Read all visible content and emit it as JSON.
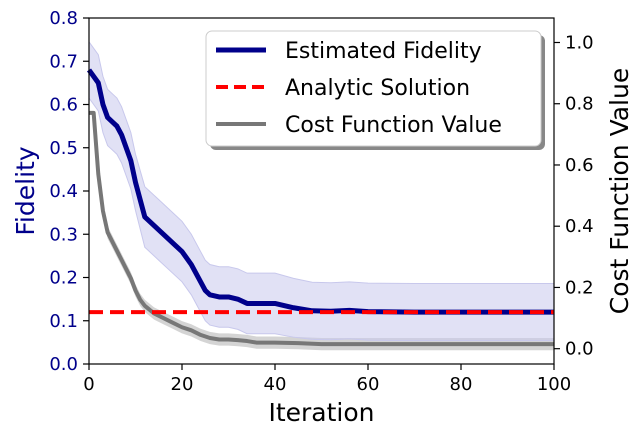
{
  "chart_data": {
    "type": "line",
    "xlabel": "Iteration",
    "ylabel_left": "Fidelity",
    "ylabel_right": "Cost Function Value",
    "xlim": [
      0,
      100
    ],
    "ylim_left": [
      0.0,
      0.8
    ],
    "ylim_right": [
      -0.05,
      1.08
    ],
    "x_ticks": [
      "0",
      "20",
      "40",
      "60",
      "80",
      "100"
    ],
    "y_ticks_left": [
      "0.0",
      "0.1",
      "0.2",
      "0.3",
      "0.4",
      "0.5",
      "0.6",
      "0.7",
      "0.8"
    ],
    "y_ticks_right": [
      "0.0",
      "0.2",
      "0.4",
      "0.6",
      "0.8",
      "1.0"
    ],
    "legend_position": "top-right",
    "colors": {
      "fidelity": "#00008b",
      "fidelity_band": "#c8c8ec",
      "analytic": "#ff0000",
      "cost": "#777777",
      "cost_band": "#cccccc",
      "left_axis_label": "#00008b"
    },
    "series": [
      {
        "name": "Estimated Fidelity",
        "axis": "left",
        "style": "solid",
        "x": [
          0,
          2,
          3,
          4,
          5,
          6,
          7,
          8,
          9,
          10,
          12,
          15,
          18,
          20,
          22,
          24,
          25,
          26,
          28,
          30,
          32,
          34,
          36,
          40,
          44,
          48,
          52,
          56,
          60,
          70,
          80,
          90,
          100
        ],
        "y": [
          0.68,
          0.65,
          0.6,
          0.57,
          0.56,
          0.55,
          0.53,
          0.5,
          0.47,
          0.42,
          0.34,
          0.31,
          0.28,
          0.26,
          0.23,
          0.19,
          0.17,
          0.16,
          0.155,
          0.155,
          0.15,
          0.14,
          0.14,
          0.14,
          0.13,
          0.123,
          0.122,
          0.124,
          0.121,
          0.12,
          0.12,
          0.12,
          0.12
        ],
        "band_half_width": [
          0.065,
          0.065,
          0.065,
          0.065,
          0.065,
          0.065,
          0.065,
          0.065,
          0.065,
          0.065,
          0.07,
          0.07,
          0.07,
          0.07,
          0.07,
          0.07,
          0.07,
          0.07,
          0.07,
          0.07,
          0.07,
          0.07,
          0.07,
          0.07,
          0.068,
          0.066,
          0.066,
          0.066,
          0.066,
          0.066,
          0.066,
          0.066,
          0.066
        ]
      },
      {
        "name": "Analytic Solution",
        "axis": "left",
        "style": "dashed",
        "x": [
          0,
          100
        ],
        "y": [
          0.12,
          0.12
        ]
      },
      {
        "name": "Cost Function Value",
        "axis": "right",
        "style": "solid",
        "x": [
          0,
          1,
          2,
          3,
          4,
          5,
          6,
          7,
          8,
          9,
          10,
          11,
          12,
          14,
          16,
          18,
          20,
          22,
          24,
          26,
          28,
          30,
          32,
          34,
          36,
          40,
          45,
          50,
          60,
          70,
          80,
          90,
          100
        ],
        "y": [
          0.77,
          0.77,
          0.57,
          0.45,
          0.38,
          0.35,
          0.32,
          0.29,
          0.26,
          0.23,
          0.19,
          0.16,
          0.14,
          0.115,
          0.1,
          0.085,
          0.07,
          0.06,
          0.045,
          0.035,
          0.03,
          0.03,
          0.028,
          0.025,
          0.02,
          0.02,
          0.018,
          0.015,
          0.015,
          0.015,
          0.015,
          0.015,
          0.015
        ],
        "band_half_width": [
          0.006,
          0.006,
          0.02,
          0.02,
          0.02,
          0.02,
          0.02,
          0.02,
          0.02,
          0.02,
          0.02,
          0.02,
          0.02,
          0.02,
          0.02,
          0.02,
          0.02,
          0.02,
          0.02,
          0.02,
          0.02,
          0.02,
          0.02,
          0.02,
          0.02,
          0.02,
          0.02,
          0.02,
          0.02,
          0.02,
          0.02,
          0.02,
          0.02
        ]
      }
    ]
  }
}
